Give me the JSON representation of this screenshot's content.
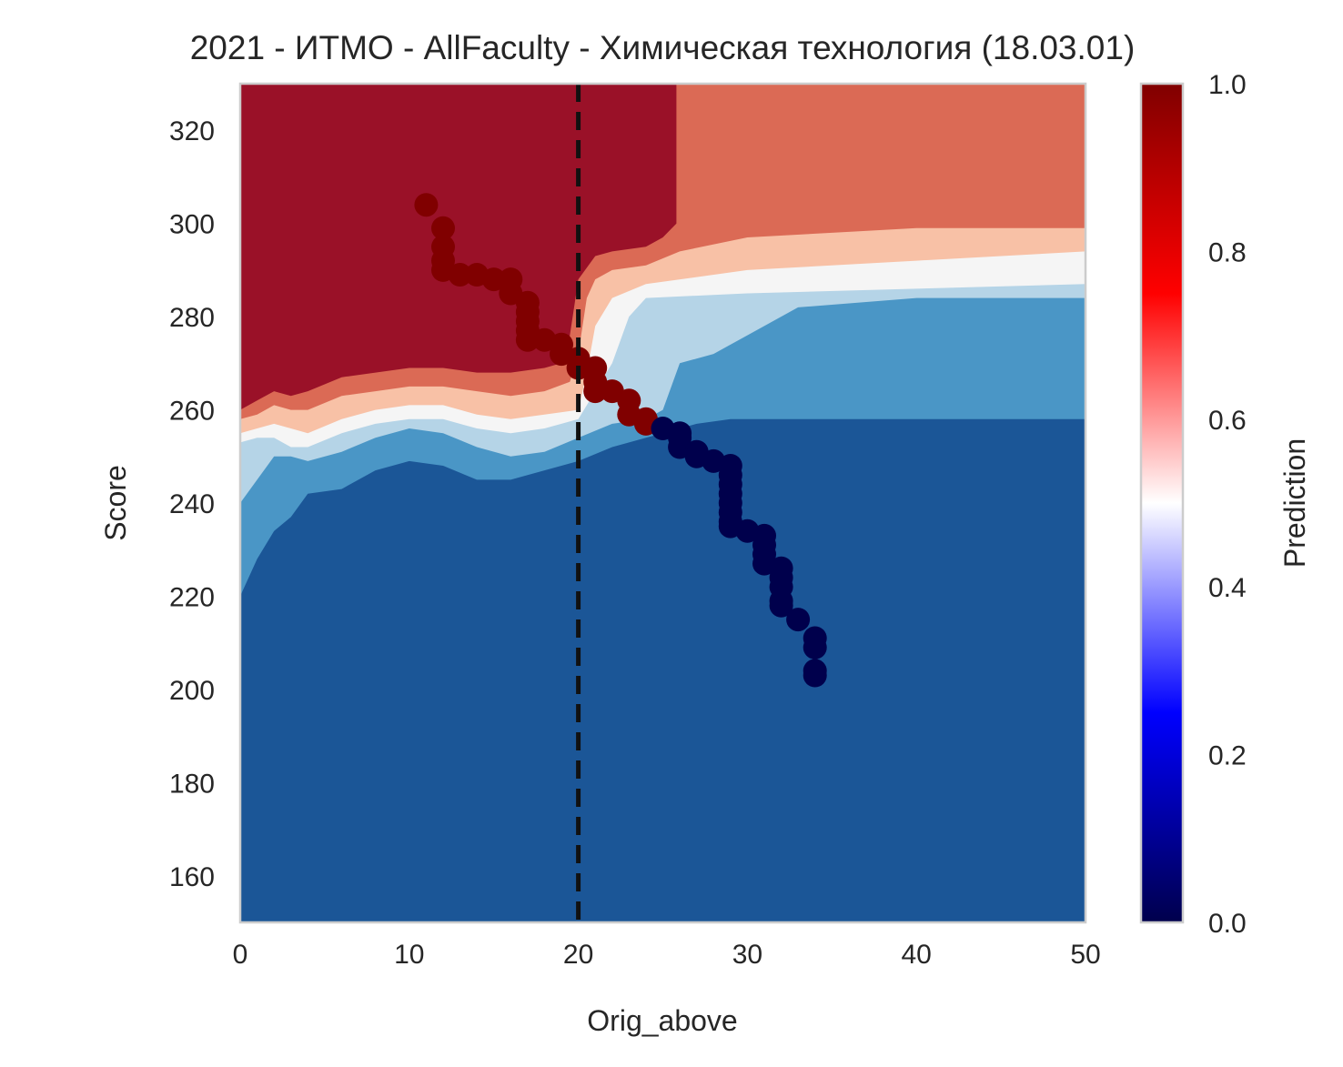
{
  "chart_data": {
    "type": "scatter",
    "title": "2021 - ИТМО - AllFaculty - Химическая технология (18.03.01)",
    "xlabel": "Orig_above",
    "ylabel": "Score",
    "xlim": [
      0,
      50
    ],
    "ylim": [
      150,
      330
    ],
    "xticks": [
      "0",
      "10",
      "20",
      "30",
      "40",
      "50"
    ],
    "yticks": [
      "160",
      "180",
      "200",
      "220",
      "240",
      "260",
      "280",
      "300",
      "320"
    ],
    "grid": false,
    "threshold_x": 20,
    "colorbar": {
      "label": "Prediction",
      "ticks": [
        "0.0",
        "0.2",
        "0.4",
        "0.6",
        "0.8",
        "1.0"
      ],
      "colormap": "seismic"
    },
    "contour_palette": [
      "#1b5697",
      "#4a96c6",
      "#b5d4e7",
      "#f5f5f5",
      "#f8c1a6",
      "#db6a55",
      "#9a1128"
    ],
    "contour_levels": [
      {
        "level": 1,
        "boundary": [
          [
            0,
            220
          ],
          [
            1,
            228
          ],
          [
            2,
            234
          ],
          [
            3,
            237
          ],
          [
            4,
            242
          ],
          [
            6,
            243
          ],
          [
            8,
            247
          ],
          [
            10,
            249
          ],
          [
            12,
            248
          ],
          [
            14,
            245
          ],
          [
            16,
            245
          ],
          [
            18,
            247
          ],
          [
            20,
            249
          ],
          [
            22,
            252
          ],
          [
            24,
            254
          ],
          [
            25,
            255
          ],
          [
            26,
            256
          ],
          [
            27,
            257
          ],
          [
            29,
            258
          ],
          [
            50,
            258
          ]
        ]
      },
      {
        "level": 2,
        "boundary": [
          [
            0,
            240
          ],
          [
            1,
            245
          ],
          [
            2,
            250
          ],
          [
            3,
            250
          ],
          [
            4,
            249
          ],
          [
            6,
            251
          ],
          [
            8,
            254
          ],
          [
            10,
            256
          ],
          [
            12,
            255
          ],
          [
            14,
            252
          ],
          [
            16,
            250
          ],
          [
            18,
            251
          ],
          [
            20,
            254
          ],
          [
            22,
            257
          ],
          [
            24,
            258
          ],
          [
            25,
            260
          ],
          [
            26,
            270
          ],
          [
            28,
            272
          ],
          [
            30,
            276
          ],
          [
            33,
            282
          ],
          [
            40,
            284
          ],
          [
            50,
            284
          ]
        ]
      },
      {
        "level": 3,
        "boundary": [
          [
            0,
            253
          ],
          [
            1,
            254
          ],
          [
            2,
            254
          ],
          [
            3,
            252
          ],
          [
            4,
            252
          ],
          [
            6,
            255
          ],
          [
            8,
            257
          ],
          [
            10,
            258
          ],
          [
            12,
            258
          ],
          [
            14,
            256
          ],
          [
            16,
            255
          ],
          [
            18,
            256
          ],
          [
            20,
            258
          ],
          [
            21,
            264
          ],
          [
            22,
            270
          ],
          [
            23,
            280
          ],
          [
            24,
            284
          ],
          [
            30,
            285
          ],
          [
            40,
            286
          ],
          [
            50,
            287
          ]
        ]
      },
      {
        "level": 4,
        "boundary": [
          [
            0,
            255
          ],
          [
            1,
            256
          ],
          [
            2,
            257
          ],
          [
            3,
            256
          ],
          [
            4,
            255
          ],
          [
            6,
            258
          ],
          [
            8,
            260
          ],
          [
            10,
            261
          ],
          [
            12,
            261
          ],
          [
            14,
            259
          ],
          [
            16,
            258
          ],
          [
            18,
            259
          ],
          [
            20,
            260
          ],
          [
            20.5,
            268
          ],
          [
            21,
            278
          ],
          [
            22,
            284
          ],
          [
            24,
            287
          ],
          [
            30,
            290
          ],
          [
            40,
            292
          ],
          [
            50,
            294
          ]
        ]
      },
      {
        "level": 5,
        "boundary": [
          [
            0,
            258
          ],
          [
            1,
            259
          ],
          [
            2,
            261
          ],
          [
            3,
            260
          ],
          [
            4,
            260
          ],
          [
            6,
            263
          ],
          [
            8,
            264
          ],
          [
            10,
            265
          ],
          [
            12,
            265
          ],
          [
            14,
            264
          ],
          [
            16,
            263
          ],
          [
            18,
            264
          ],
          [
            19.5,
            266
          ],
          [
            20,
            272
          ],
          [
            20.5,
            284
          ],
          [
            21,
            288
          ],
          [
            22,
            290
          ],
          [
            24,
            291
          ],
          [
            26,
            294
          ],
          [
            30,
            297
          ],
          [
            40,
            299
          ],
          [
            50,
            299
          ]
        ]
      },
      {
        "level": 6,
        "boundary": [
          [
            0,
            260
          ],
          [
            1,
            262
          ],
          [
            2,
            264
          ],
          [
            3,
            263
          ],
          [
            4,
            264
          ],
          [
            6,
            267
          ],
          [
            8,
            268
          ],
          [
            10,
            269
          ],
          [
            12,
            269
          ],
          [
            14,
            268
          ],
          [
            16,
            268
          ],
          [
            18,
            269
          ],
          [
            19,
            270
          ],
          [
            19.5,
            276
          ],
          [
            20,
            288
          ],
          [
            21,
            293
          ],
          [
            22,
            294
          ],
          [
            24,
            295
          ],
          [
            25,
            297
          ],
          [
            25.8,
            300
          ],
          [
            25.8,
            330
          ]
        ]
      }
    ],
    "series": [
      {
        "color": "#800000",
        "points": [
          [
            11,
            304
          ],
          [
            12,
            299
          ],
          [
            12,
            295
          ],
          [
            12,
            292
          ],
          [
            12,
            290
          ],
          [
            13,
            289
          ],
          [
            14,
            289
          ],
          [
            15,
            288
          ],
          [
            16,
            288
          ],
          [
            16,
            285
          ],
          [
            17,
            283
          ],
          [
            17,
            281
          ],
          [
            17,
            279
          ],
          [
            17,
            277
          ],
          [
            17,
            275
          ],
          [
            18,
            275
          ],
          [
            19,
            274
          ],
          [
            19,
            272
          ],
          [
            20,
            271
          ],
          [
            20,
            269
          ],
          [
            21,
            269
          ],
          [
            21,
            266
          ],
          [
            21,
            264
          ],
          [
            22,
            264
          ],
          [
            23,
            262
          ],
          [
            23,
            259
          ],
          [
            24,
            258
          ],
          [
            24,
            257
          ]
        ]
      },
      {
        "color": "#00004c",
        "points": [
          [
            25,
            256
          ],
          [
            26,
            255
          ],
          [
            26,
            254
          ],
          [
            26,
            252
          ],
          [
            27,
            251
          ],
          [
            27,
            250
          ],
          [
            28,
            249
          ],
          [
            29,
            248
          ],
          [
            29,
            246
          ],
          [
            29,
            244
          ],
          [
            29,
            242
          ],
          [
            29,
            240
          ],
          [
            29,
            238
          ],
          [
            29,
            236
          ],
          [
            29,
            235
          ],
          [
            30,
            234
          ],
          [
            31,
            233
          ],
          [
            31,
            231
          ],
          [
            31,
            229
          ],
          [
            31,
            227
          ],
          [
            32,
            226
          ],
          [
            32,
            224
          ],
          [
            32,
            222
          ],
          [
            32,
            219
          ],
          [
            32,
            218
          ],
          [
            33,
            215
          ],
          [
            34,
            211
          ],
          [
            34,
            209
          ],
          [
            34,
            204
          ],
          [
            34,
            203
          ]
        ]
      }
    ]
  }
}
